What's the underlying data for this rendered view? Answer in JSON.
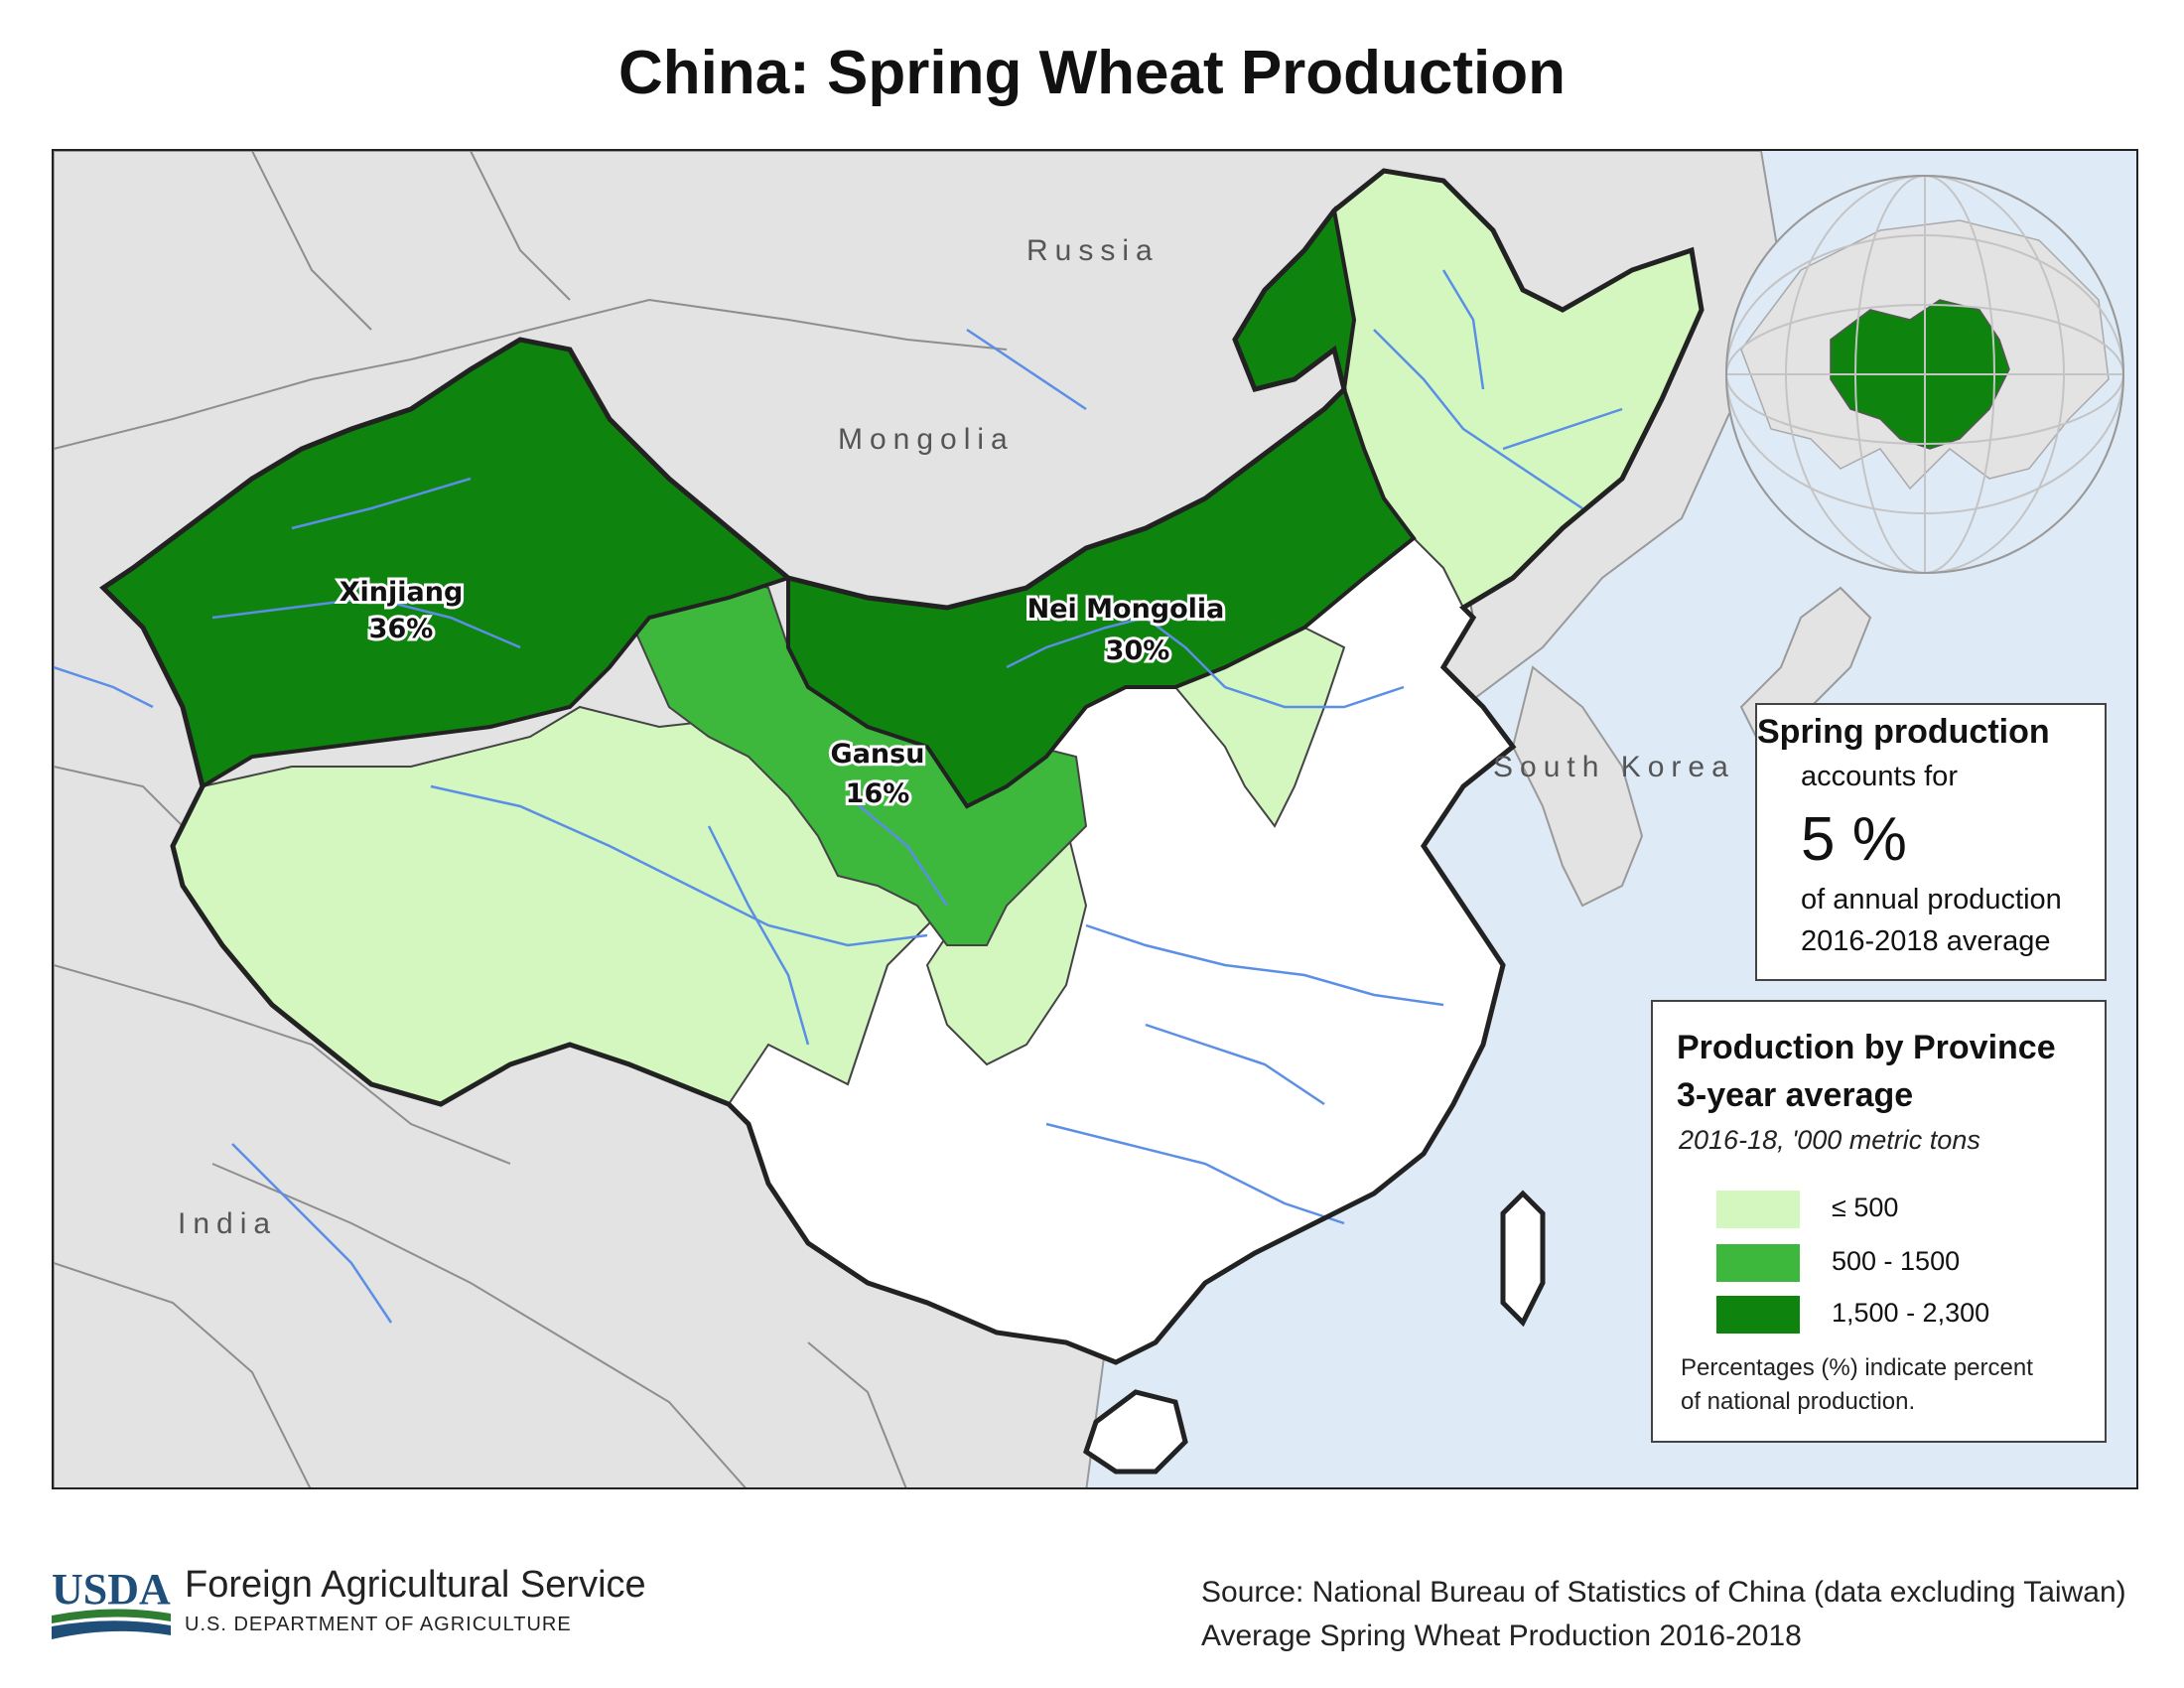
{
  "title": "China: Spring Wheat Production",
  "countries": {
    "russia": "Russia",
    "mongolia": "Mongolia",
    "south_korea": "South Korea",
    "india": "India"
  },
  "provinces": {
    "xinjiang": {
      "name": "Xinjiang",
      "pct": "36%"
    },
    "nei_mongolia": {
      "name": "Nei Mongolia",
      "pct": "30%"
    },
    "gansu": {
      "name": "Gansu",
      "pct": "16%"
    }
  },
  "spring_box": {
    "title": "Spring production",
    "sub": "accounts for",
    "value": "5 %",
    "line1": "of annual production",
    "line2": "2016-2018 average"
  },
  "legend": {
    "title_line1": "Production by Province",
    "title_line2": "3-year average",
    "subtitle": "2016-18, '000 metric tons",
    "classes": [
      {
        "label": "≤ 500",
        "color": "#d3f7bf"
      },
      {
        "label": "500 - 1500",
        "color": "#3db83d"
      },
      {
        "label": "1,500 - 2,300",
        "color": "#0e830e"
      }
    ],
    "note_line1": "Percentages (%) indicate percent",
    "note_line2": "of national production."
  },
  "footer": {
    "usda": "USDA",
    "agency": "Foreign Agricultural Service",
    "department": "U.S. DEPARTMENT OF AGRICULTURE",
    "source_line1": "Source: National Bureau of Statistics of China (data excluding Taiwan)",
    "source_line2": "Average Spring Wheat Production 2016-2018"
  },
  "colors": {
    "water": "#dfeaf7",
    "land": "#e3e3e3",
    "china_other": "#ffffff",
    "river": "#5b8fe6",
    "border": "#222222"
  }
}
